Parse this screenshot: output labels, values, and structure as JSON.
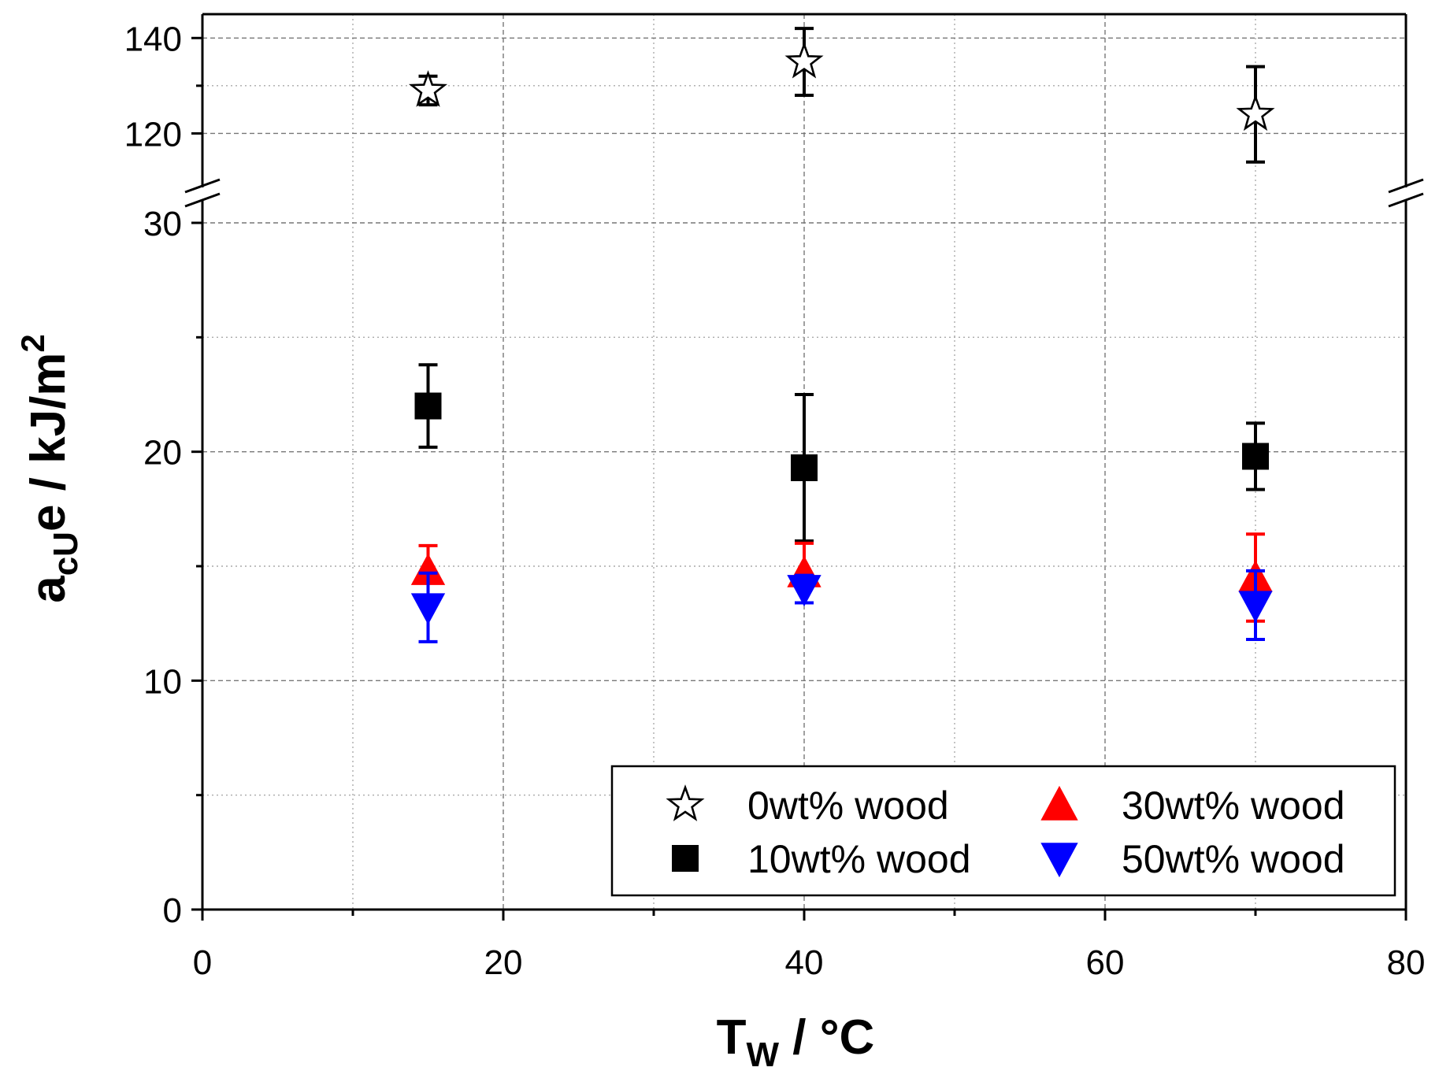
{
  "chart_data": {
    "type": "scatter",
    "title": "",
    "xlabel": {
      "main": "T",
      "sub": "W",
      "rest": " / °C"
    },
    "ylabel": {
      "main": "a",
      "sub": "cU",
      "rest": "e / kJ/m",
      "sup": "2"
    },
    "xlim": [
      0,
      80
    ],
    "ylim_lower": [
      0,
      30
    ],
    "ylim_upper": [
      110,
      145
    ],
    "axis_break": "between 30 and 110",
    "grid": true,
    "xticks": [
      0,
      20,
      40,
      60,
      80
    ],
    "yticks_lower": [
      0,
      10,
      20,
      30
    ],
    "yticks_upper": [
      120,
      140
    ],
    "legend_position": "bottom-right",
    "series": [
      {
        "name": "0wt% wood",
        "marker": "star",
        "color": "#000000",
        "fill": "#ffffff",
        "segment": "upper",
        "x": [
          15,
          40,
          70
        ],
        "y": [
          129,
          135,
          124
        ],
        "err": [
          3,
          7,
          10
        ]
      },
      {
        "name": "10wt% wood",
        "marker": "square",
        "color": "#000000",
        "fill": "#000000",
        "segment": "lower",
        "x": [
          15,
          40,
          70
        ],
        "y": [
          22.0,
          19.3,
          19.8
        ],
        "err": [
          1.8,
          3.2,
          1.45
        ]
      },
      {
        "name": "30wt% wood",
        "marker": "triangle-up",
        "color": "#ff0000",
        "fill": "#ff0000",
        "segment": "lower",
        "x": [
          15,
          40,
          70
        ],
        "y": [
          14.8,
          14.7,
          14.5
        ],
        "err": [
          1.1,
          1.3,
          1.9
        ]
      },
      {
        "name": "50wt% wood",
        "marker": "triangle-down",
        "color": "#0000ff",
        "fill": "#0000ff",
        "segment": "lower",
        "x": [
          15,
          40,
          70
        ],
        "y": [
          13.2,
          14.0,
          13.3
        ],
        "err": [
          1.5,
          0.6,
          1.5
        ]
      }
    ]
  }
}
